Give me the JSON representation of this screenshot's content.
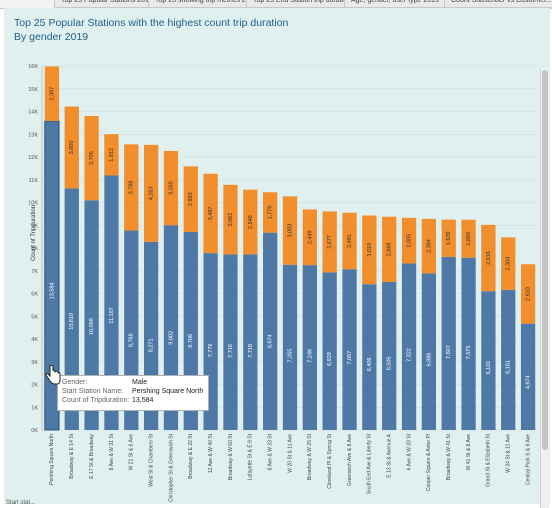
{
  "tabs": [
    "Top 25 Popular Stations 2019",
    "Top 25 showing trip metrics 20...",
    "Top 25 End Station trip duratio...",
    "Age, gender, user type 2019",
    "Count Subscriber vs Customer..."
  ],
  "title_line1": "Top 25 Popular Stations with the highest count trip duration",
  "title_line2": "By gender 2019",
  "colors": {
    "male": "#4e79a7",
    "female": "#f28e2b",
    "panel": "#e0f0ee"
  },
  "tooltip": {
    "gender_key": "Gender:",
    "gender_val": "Male",
    "station_key": "Start Station Name:",
    "station_val": "Pershing Square North",
    "count_key": "Count of Tripduration:",
    "count_val": "13,584"
  },
  "bottom_note": "Start stat...",
  "chart_data": {
    "type": "bar",
    "stacked": true,
    "ylabel": "Count of Tripduration",
    "ylim": [
      0,
      16000
    ],
    "yticks": [
      "0K",
      "1K",
      "2K",
      "3K",
      "4K",
      "5K",
      "6K",
      "7K",
      "8K",
      "9K",
      "10K",
      "11K",
      "12K",
      "13K",
      "14K",
      "15K",
      "16K"
    ],
    "categories": [
      "Pershing Square North",
      "Broadway & E 14 St",
      "E 17 St & Broadway",
      "8 Ave & W 31 St",
      "W 21 St & 6 Ave",
      "West St & Chambers St",
      "Christopher St & Greenwich St",
      "Broadway & E 22 St",
      "12 Ave & W 40 St",
      "Broadway & W 60 St",
      "Lafayette St & E 8 St",
      "8 Ave & W 33 St",
      "W 20 St & 11 Ave",
      "Broadway & W 25 St",
      "Cleveland Pl & Spring St",
      "Greenwich Ave & 8 Ave",
      "South End Ave & Liberty St",
      "E 13 St & Avenue A",
      "6 Ave & W 33 St",
      "Cooper Square & Astor Pl",
      "Broadway & W 41 St",
      "W 41 St & 8 Ave",
      "Grand St & Elizabeth St",
      "W 34 St & 11 Ave",
      "Central Park S & 6 Ave"
    ],
    "series": [
      {
        "name": "Male",
        "values": [
          13584,
          10618,
          10098,
          11187,
          8768,
          8271,
          9002,
          8706,
          7776,
          7716,
          7718,
          8674,
          7265,
          7246,
          6929,
          7067,
          6409,
          6505,
          7322,
          6886,
          7607,
          7575,
          6101,
          6161,
          4674
        ],
        "labels": [
          "13,584",
          "10,618",
          "10,098",
          "11,187",
          "8,768",
          "8,271",
          "9,002",
          "8,706",
          "7,776",
          "7,716",
          "7,718",
          "8,674",
          "7,265",
          "7,246",
          "6,929",
          "7,067",
          "6,409",
          "6,505",
          "7,322",
          "6,886",
          "7,607",
          "7,575",
          "6,101",
          "6,161",
          "4,674"
        ]
      },
      {
        "name": "Female",
        "values": [
          2397,
          3600,
          3706,
          1812,
          3788,
          4263,
          3265,
          2883,
          3487,
          3062,
          2846,
          1776,
          3003,
          2449,
          2677,
          2481,
          3019,
          2868,
          2005,
          2394,
          1639,
          1666,
          2916,
          2304,
          2610
        ],
        "labels": [
          "2,397",
          "3,600",
          "3,706",
          "1,812",
          "3,788",
          "4,263",
          "3,265",
          "2,883",
          "3,487",
          "3,062",
          "2,846",
          "1,776",
          "3,003",
          "2,449",
          "2,677",
          "2,481",
          "3,019",
          "2,868",
          "2,005",
          "2,394",
          "1,639",
          "1,666",
          "2,916",
          "2,304",
          "2,610"
        ]
      }
    ]
  }
}
